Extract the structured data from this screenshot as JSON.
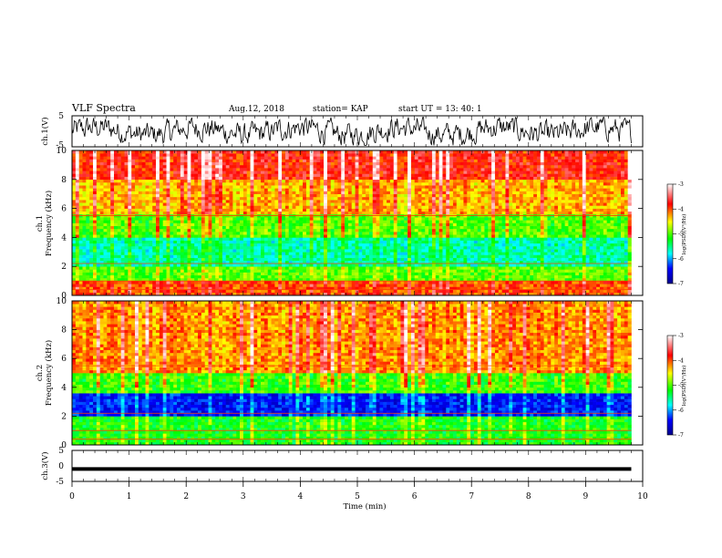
{
  "header": {
    "title": "VLF Spectra",
    "date": "Aug.12, 2018",
    "station": "station= KAP",
    "start_ut": "start  UT  =   13: 40: 1"
  },
  "colors": {
    "trace": "#000000",
    "spectro_low": "#00008c",
    "spectro_mid": "#00ff00",
    "spectro_high": "#ff0000"
  },
  "chart_data": [
    {
      "type": "line",
      "panel": "ch1-waveform",
      "ylabel": "ch.1(V)",
      "ylim": [
        -5,
        5
      ],
      "ytick_labels": [
        "5",
        "-5"
      ],
      "xlim": [
        0,
        10
      ],
      "description_values": {
        "x_min": 0,
        "x_max": 9.8,
        "mean": 0,
        "amplitude": 3.5
      }
    },
    {
      "type": "heatmap",
      "panel": "ch1-spectrogram",
      "ylabel": "ch.1\nFrequency  (kHz)",
      "ylabel_lines": [
        "ch.1",
        "Frequency  (kHz)"
      ],
      "ylim": [
        0,
        10
      ],
      "ytick_labels": [
        "0",
        "2",
        "4",
        "6",
        "8",
        "10"
      ],
      "xlim": [
        0,
        10
      ],
      "colorbar": {
        "label": "log(PSD)(V²/Hz)",
        "range": [
          -7,
          -3
        ],
        "tick_labels": [
          "-3",
          "-4",
          "-5",
          "-6",
          "-7"
        ]
      },
      "bands": [
        {
          "freq_range_khz": [
            0,
            1
          ],
          "log_psd": -4.0
        },
        {
          "freq_range_khz": [
            1,
            2
          ],
          "log_psd": -5.0
        },
        {
          "freq_range_khz": [
            2,
            4
          ],
          "log_psd": -5.6
        },
        {
          "freq_range_khz": [
            4,
            5.5
          ],
          "log_psd": -5.0
        },
        {
          "freq_range_khz": [
            5.5,
            8
          ],
          "log_psd": -4.3
        },
        {
          "freq_range_khz": [
            8,
            10
          ],
          "log_psd": -3.8
        }
      ]
    },
    {
      "type": "heatmap",
      "panel": "ch2-spectrogram",
      "ylabel_lines": [
        "ch.2",
        "Frequency  (kHz)"
      ],
      "ylim": [
        0,
        10
      ],
      "ytick_labels": [
        "0",
        "2",
        "4",
        "6",
        "8",
        "10"
      ],
      "xlim": [
        0,
        10
      ],
      "colorbar": {
        "label": "log(PSD)(V²/Hz)",
        "range": [
          -7,
          -3
        ],
        "tick_labels": [
          "-3",
          "-4",
          "-5",
          "-6",
          "-7"
        ]
      },
      "bands": [
        {
          "freq_range_khz": [
            0,
            2
          ],
          "log_psd": -5.2
        },
        {
          "freq_range_khz": [
            2,
            3.5
          ],
          "log_psd": -6.4
        },
        {
          "freq_range_khz": [
            3.5,
            5
          ],
          "log_psd": -5.1
        },
        {
          "freq_range_khz": [
            5,
            10
          ],
          "log_psd": -4.2
        }
      ]
    },
    {
      "type": "line",
      "panel": "ch3-waveform",
      "ylabel": "ch.3(V)",
      "ylim": [
        -5,
        5
      ],
      "ytick_labels": [
        "5",
        "0",
        "-5"
      ],
      "xlim": [
        0,
        10
      ],
      "values_constant": -1
    }
  ],
  "x_axis": {
    "label": "Time  (min)",
    "tick_labels": [
      "0",
      "1",
      "2",
      "3",
      "4",
      "5",
      "6",
      "7",
      "8",
      "9",
      "10"
    ]
  }
}
